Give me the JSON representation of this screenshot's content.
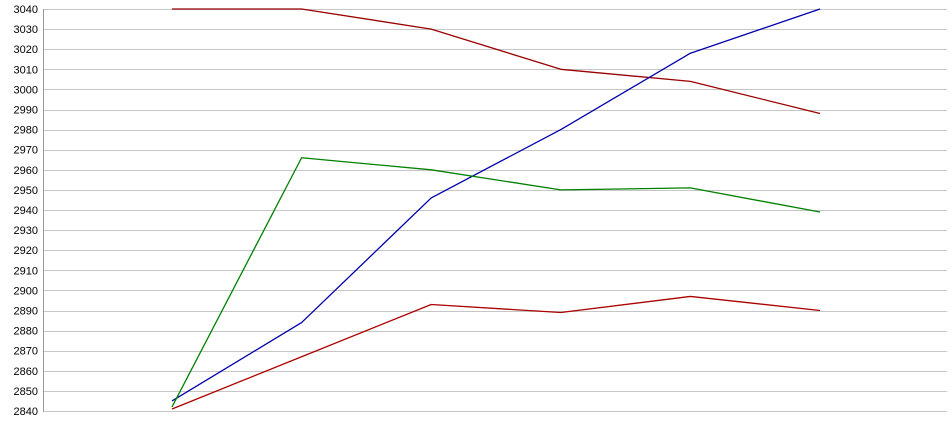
{
  "chart_data": {
    "type": "line",
    "title": "",
    "xlabel": "",
    "ylabel": "",
    "x_labels": [
      "",
      "",
      "",
      "",
      "",
      ""
    ],
    "x_count": 6,
    "ylim": [
      2840,
      3040
    ],
    "y_tick_step": 10,
    "y_ticks": [
      2840,
      2850,
      2860,
      2870,
      2880,
      2890,
      2900,
      2910,
      2920,
      2930,
      2940,
      2950,
      2960,
      2970,
      2980,
      2990,
      3000,
      3010,
      3020,
      3030,
      3040
    ],
    "grid": true,
    "legend": false,
    "series": [
      {
        "name": "dark-red-upper",
        "color": "#990000",
        "values": [
          3040,
          3040,
          3030,
          3010,
          3004,
          2988
        ]
      },
      {
        "name": "blue",
        "color": "#0000AA",
        "values": [
          2845,
          2884,
          2946,
          2980,
          3018,
          3040
        ]
      },
      {
        "name": "green",
        "color": "#008000",
        "values": [
          2842,
          2966,
          2960,
          2950,
          2951,
          2939
        ]
      },
      {
        "name": "dark-red-lower",
        "color": "#AA0000",
        "values": [
          2841,
          2867,
          2893,
          2889,
          2897,
          2890
        ]
      }
    ]
  },
  "colors": {
    "background": "#ffffff",
    "gridline": "#c6c6c6",
    "axis": "#999999",
    "tick_text": "#000000"
  }
}
